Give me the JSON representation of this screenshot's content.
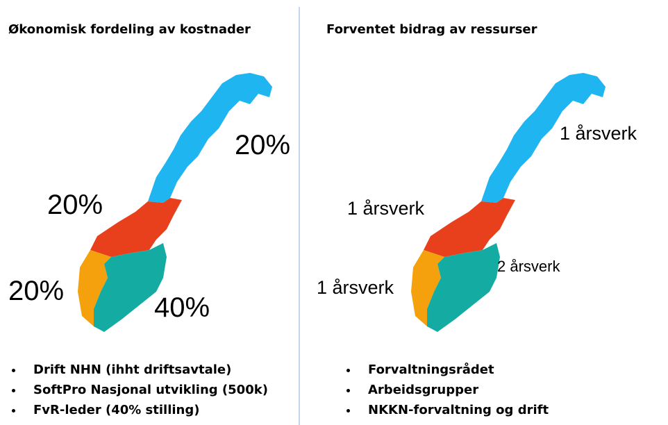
{
  "left": {
    "title": "Økonomisk fordeling av kostnader",
    "regions": {
      "north": "20%",
      "mid": "20%",
      "west": "20%",
      "east": "40%"
    },
    "bullets": [
      "Drift NHN (ihht driftsavtale)",
      "SoftPro Nasjonal utvikling (500k)",
      "FvR-leder (40% stilling)"
    ]
  },
  "right": {
    "title": "Forventet bidrag av ressurser",
    "regions": {
      "north": "1 årsverk",
      "mid": "1 årsverk",
      "west": "1 årsverk",
      "east": "2 årsverk"
    },
    "bullets": [
      "Forvaltningsrådet",
      "Arbeidsgrupper",
      "NKKN-forvaltning og drift"
    ]
  }
}
